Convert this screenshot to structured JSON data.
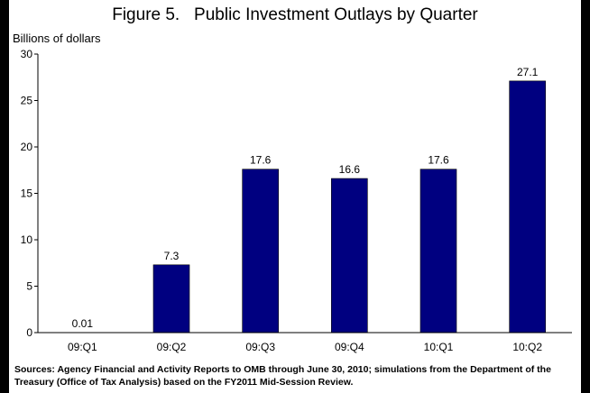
{
  "chart_data": {
    "type": "bar",
    "title": "Figure 5.   Public Investment Outlays by Quarter",
    "ylabel": "Billions of dollars",
    "xlabel": "",
    "categories": [
      "09:Q1",
      "09:Q2",
      "09:Q3",
      "09:Q4",
      "10:Q1",
      "10:Q2"
    ],
    "values": [
      0.01,
      7.3,
      17.6,
      16.6,
      17.6,
      27.1
    ],
    "data_labels": [
      "0.01",
      "7.3",
      "17.6",
      "16.6",
      "17.6",
      "27.1"
    ],
    "ylim": [
      0,
      30
    ],
    "yticks": [
      0,
      5,
      10,
      15,
      20,
      25,
      30
    ],
    "bar_color": "#000080",
    "grid": false,
    "legend": false
  },
  "source_note": "Sources:  Agency Financial and Activity Reports to OMB through June 30, 2010; simulations from the Department of the Treasury (Office of Tax Analysis) based on the FY2011 Mid-Session Review."
}
